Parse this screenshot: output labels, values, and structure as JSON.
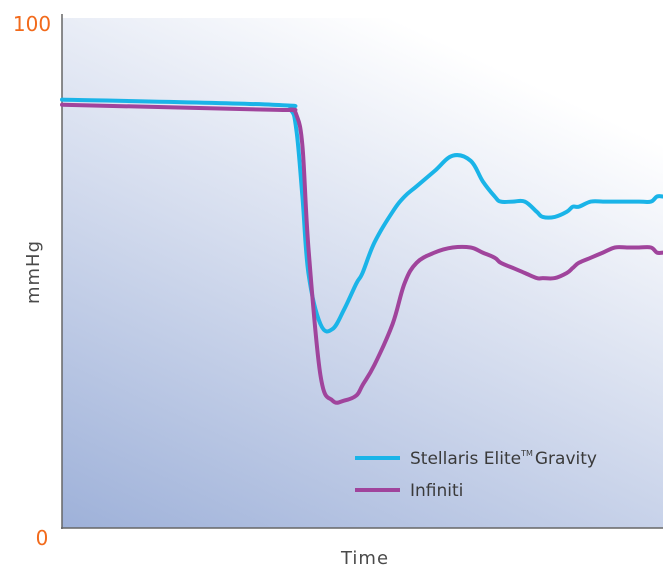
{
  "chart_data": {
    "type": "line",
    "title": "",
    "xlabel": "Time",
    "ylabel": "mmHg",
    "ylim": [
      0,
      100
    ],
    "y_ticks": [
      "0",
      "100"
    ],
    "grid": false,
    "legend_position": "bottom-right",
    "x": [
      0.0,
      0.35,
      0.38,
      0.39,
      0.4,
      0.41,
      0.43,
      0.45,
      0.47,
      0.49,
      0.5,
      0.52,
      0.55,
      0.57,
      0.59,
      0.62,
      0.65,
      0.68,
      0.7,
      0.72,
      0.73,
      0.75,
      0.77,
      0.79,
      0.8,
      0.82,
      0.84,
      0.85,
      0.86,
      0.88,
      0.9,
      0.92,
      0.94,
      0.96,
      0.98,
      0.99,
      1.0
    ],
    "series": [
      {
        "name": "Stellaris Elite Gravity",
        "color": "#1ab4e8",
        "values": [
          84,
          83,
          82,
          78,
          65,
          50,
          40,
          39,
          43,
          48,
          50,
          56,
          62,
          65,
          67,
          70,
          73,
          72,
          68,
          65,
          64,
          64,
          64,
          62,
          61,
          61,
          62,
          63,
          63,
          64,
          64,
          64,
          64,
          64,
          64,
          65,
          65
        ]
      },
      {
        "name": "Infiniti",
        "color": "#a0449c",
        "values": [
          83,
          82,
          82,
          81,
          75,
          55,
          30,
          25,
          25,
          26,
          28,
          32,
          40,
          48,
          52,
          54,
          55,
          55,
          54,
          53,
          52,
          51,
          50,
          49,
          49,
          49,
          50,
          51,
          52,
          53,
          54,
          55,
          55,
          55,
          55,
          54,
          54
        ]
      }
    ]
  },
  "legend": {
    "item1_main": "Stellaris Elite",
    "item1_tm": "TM",
    "item1_suffix": "Gravity",
    "item2": "Infiniti"
  }
}
